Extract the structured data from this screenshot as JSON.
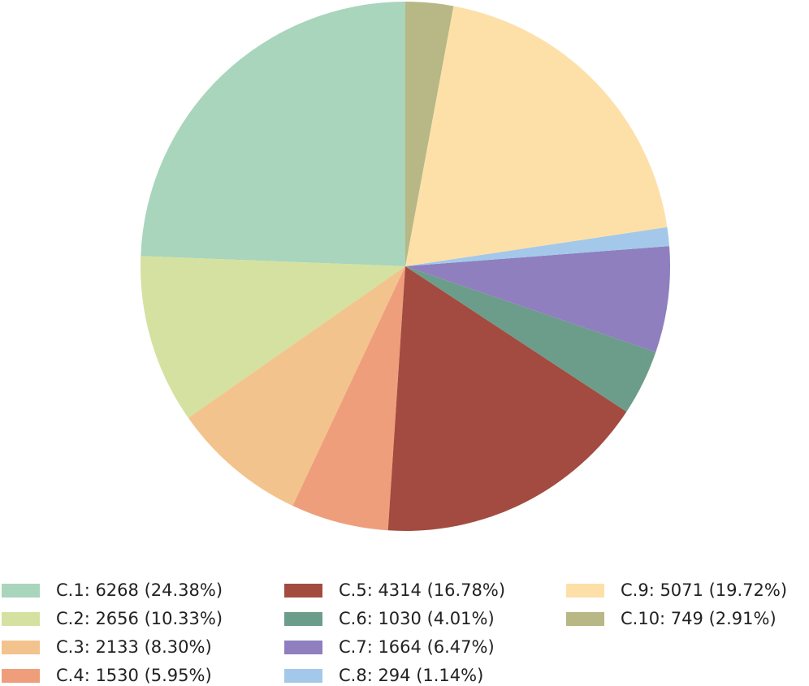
{
  "chart_data": {
    "type": "pie",
    "title": "",
    "start_angle_deg": 90,
    "direction": "counterclockwise",
    "legend_position": "bottom",
    "legend_columns": 3,
    "slices": [
      {
        "label": "C.1",
        "value": 6268,
        "percent": "24.38%",
        "legend_text": "C.1: 6268 (24.38%)",
        "color": "#a8d5bc"
      },
      {
        "label": "C.2",
        "value": 2656,
        "percent": "10.33%",
        "legend_text": "C.2: 2656 (10.33%)",
        "color": "#d5e1a0"
      },
      {
        "label": "C.3",
        "value": 2133,
        "percent": "8.30%",
        "legend_text": "C.3: 2133 (8.30%)",
        "color": "#f3c38d"
      },
      {
        "label": "C.4",
        "value": 1530,
        "percent": "5.95%",
        "legend_text": "C.4: 1530 (5.95%)",
        "color": "#ef9e7c"
      },
      {
        "label": "C.5",
        "value": 4314,
        "percent": "16.78%",
        "legend_text": "C.5: 4314 (16.78%)",
        "color": "#a34b40"
      },
      {
        "label": "C.6",
        "value": 1030,
        "percent": "4.01%",
        "legend_text": "C.6: 1030 (4.01%)",
        "color": "#6c9c8a"
      },
      {
        "label": "C.7",
        "value": 1664,
        "percent": "6.47%",
        "legend_text": "C.7: 1664 (6.47%)",
        "color": "#8f7fbf"
      },
      {
        "label": "C.8",
        "value": 294,
        "percent": "1.14%",
        "legend_text": "C.8: 294 (1.14%)",
        "color": "#a4c8e9"
      },
      {
        "label": "C.9",
        "value": 5071,
        "percent": "19.72%",
        "legend_text": "C.9: 5071 (19.72%)",
        "color": "#fde0a8"
      },
      {
        "label": "C.10",
        "value": 749,
        "percent": "2.91%",
        "legend_text": "C.10: 749 (2.91%)",
        "color": "#b7b885"
      }
    ]
  }
}
